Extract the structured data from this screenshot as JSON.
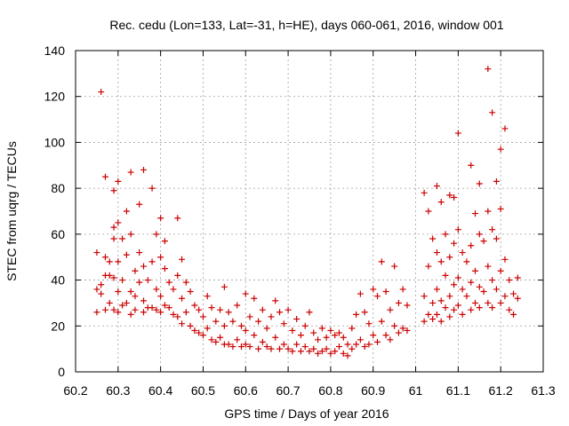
{
  "chart_data": {
    "type": "scatter",
    "title": "Rec. cedu (Lon=133, Lat=-31, h=HE), days 060-061, 2016, window 001",
    "xlabel": "GPS time / Days of year 2016",
    "ylabel": "STEC from uqrg / TECUs",
    "xlim": [
      60.2,
      61.3
    ],
    "ylim": [
      0,
      140
    ],
    "x_ticks": [
      "60.2",
      "60.3",
      "60.4",
      "60.5",
      "60.6",
      "60.7",
      "60.8",
      "60.9",
      "61",
      "61.1",
      "61.2",
      "61.3"
    ],
    "y_ticks": [
      "0",
      "20",
      "40",
      "60",
      "80",
      "100",
      "120",
      "140"
    ],
    "grid": true,
    "marker": "plus",
    "color": "#cc0000",
    "series": [
      {
        "points": [
          [
            60.25,
            52
          ],
          [
            60.25,
            36
          ],
          [
            60.25,
            26
          ],
          [
            60.26,
            122
          ],
          [
            60.26,
            38
          ],
          [
            60.26,
            34
          ],
          [
            60.27,
            85
          ],
          [
            60.27,
            50
          ],
          [
            60.27,
            42
          ],
          [
            60.27,
            27
          ],
          [
            60.28,
            48
          ],
          [
            60.28,
            42
          ],
          [
            60.28,
            30
          ],
          [
            60.29,
            79
          ],
          [
            60.29,
            63
          ],
          [
            60.29,
            58
          ],
          [
            60.29,
            41
          ],
          [
            60.29,
            27
          ],
          [
            60.3,
            83
          ],
          [
            60.3,
            65
          ],
          [
            60.3,
            48
          ],
          [
            60.3,
            35
          ],
          [
            60.3,
            26
          ],
          [
            60.31,
            58
          ],
          [
            60.31,
            40
          ],
          [
            60.31,
            29
          ],
          [
            60.32,
            70
          ],
          [
            60.32,
            51
          ],
          [
            60.32,
            30
          ],
          [
            60.33,
            87
          ],
          [
            60.33,
            60
          ],
          [
            60.33,
            35
          ],
          [
            60.33,
            25
          ],
          [
            60.34,
            44
          ],
          [
            60.34,
            33
          ],
          [
            60.34,
            27
          ],
          [
            60.35,
            73
          ],
          [
            60.35,
            52
          ],
          [
            60.35,
            39
          ],
          [
            60.36,
            88
          ],
          [
            60.36,
            46
          ],
          [
            60.36,
            31
          ],
          [
            60.36,
            26
          ],
          [
            60.37,
            40
          ],
          [
            60.37,
            28
          ],
          [
            60.38,
            80
          ],
          [
            60.38,
            48
          ],
          [
            60.38,
            28
          ],
          [
            60.39,
            60
          ],
          [
            60.39,
            36
          ],
          [
            60.39,
            27
          ],
          [
            60.4,
            67
          ],
          [
            60.4,
            50
          ],
          [
            60.4,
            33
          ],
          [
            60.4,
            26
          ],
          [
            60.41,
            57
          ],
          [
            60.41,
            45
          ],
          [
            60.41,
            29
          ],
          [
            60.42,
            39
          ],
          [
            60.42,
            28
          ],
          [
            60.43,
            36
          ],
          [
            60.43,
            25
          ],
          [
            60.44,
            67
          ],
          [
            60.44,
            42
          ],
          [
            60.44,
            24
          ],
          [
            60.45,
            49
          ],
          [
            60.45,
            32
          ],
          [
            60.45,
            21
          ],
          [
            60.46,
            39
          ],
          [
            60.46,
            26
          ],
          [
            60.47,
            35
          ],
          [
            60.47,
            20
          ],
          [
            60.48,
            29
          ],
          [
            60.48,
            18
          ],
          [
            60.49,
            27
          ],
          [
            60.49,
            17
          ],
          [
            60.5,
            24
          ],
          [
            60.5,
            16
          ],
          [
            60.51,
            33
          ],
          [
            60.51,
            19
          ],
          [
            60.52,
            28
          ],
          [
            60.52,
            14
          ],
          [
            60.53,
            22
          ],
          [
            60.53,
            13
          ],
          [
            60.54,
            27
          ],
          [
            60.54,
            15
          ],
          [
            60.55,
            37
          ],
          [
            60.55,
            20
          ],
          [
            60.55,
            12
          ],
          [
            60.56,
            26
          ],
          [
            60.56,
            12
          ],
          [
            60.57,
            22
          ],
          [
            60.57,
            11
          ],
          [
            60.58,
            29
          ],
          [
            60.58,
            14
          ],
          [
            60.59,
            20
          ],
          [
            60.59,
            11
          ],
          [
            60.6,
            34
          ],
          [
            60.6,
            18
          ],
          [
            60.6,
            12
          ],
          [
            60.61,
            24
          ],
          [
            60.61,
            11
          ],
          [
            60.62,
            32
          ],
          [
            60.62,
            16
          ],
          [
            60.63,
            22
          ],
          [
            60.63,
            10
          ],
          [
            60.64,
            27
          ],
          [
            60.64,
            13
          ],
          [
            60.65,
            19
          ],
          [
            60.65,
            11
          ],
          [
            60.66,
            24
          ],
          [
            60.66,
            10
          ],
          [
            60.67,
            31
          ],
          [
            60.67,
            15
          ],
          [
            60.68,
            26
          ],
          [
            60.68,
            10
          ],
          [
            60.69,
            21
          ],
          [
            60.69,
            12
          ],
          [
            60.7,
            27
          ],
          [
            60.7,
            10
          ],
          [
            60.71,
            18
          ],
          [
            60.71,
            9
          ],
          [
            60.72,
            23
          ],
          [
            60.72,
            12
          ],
          [
            60.73,
            16
          ],
          [
            60.73,
            9
          ],
          [
            60.74,
            20
          ],
          [
            60.74,
            11
          ],
          [
            60.75,
            26
          ],
          [
            60.75,
            9
          ],
          [
            60.76,
            17
          ],
          [
            60.76,
            10
          ],
          [
            60.77,
            14
          ],
          [
            60.77,
            8
          ],
          [
            60.78,
            19
          ],
          [
            60.78,
            9
          ],
          [
            60.79,
            15
          ],
          [
            60.79,
            10
          ],
          [
            60.8,
            18
          ],
          [
            60.8,
            8
          ],
          [
            60.81,
            16
          ],
          [
            60.81,
            9
          ],
          [
            60.82,
            17
          ],
          [
            60.82,
            11
          ],
          [
            60.83,
            15
          ],
          [
            60.83,
            8
          ],
          [
            60.84,
            12
          ],
          [
            60.84,
            7
          ],
          [
            60.85,
            19
          ],
          [
            60.85,
            10
          ],
          [
            60.86,
            25
          ],
          [
            60.86,
            12
          ],
          [
            60.87,
            34
          ],
          [
            60.87,
            14
          ],
          [
            60.88,
            26
          ],
          [
            60.88,
            11
          ],
          [
            60.89,
            21
          ],
          [
            60.89,
            12
          ],
          [
            60.9,
            36
          ],
          [
            60.9,
            16
          ],
          [
            60.91,
            33
          ],
          [
            60.91,
            13
          ],
          [
            60.92,
            48
          ],
          [
            60.92,
            22
          ],
          [
            60.93,
            35
          ],
          [
            60.93,
            16
          ],
          [
            60.94,
            27
          ],
          [
            60.94,
            14
          ],
          [
            60.95,
            46
          ],
          [
            60.95,
            20
          ],
          [
            60.96,
            30
          ],
          [
            60.96,
            17
          ],
          [
            60.97,
            36
          ],
          [
            60.97,
            19
          ],
          [
            60.98,
            29
          ],
          [
            60.98,
            18
          ],
          [
            61.02,
            78
          ],
          [
            61.02,
            33
          ],
          [
            61.02,
            22
          ],
          [
            61.03,
            70
          ],
          [
            61.03,
            46
          ],
          [
            61.03,
            25
          ],
          [
            61.04,
            58
          ],
          [
            61.04,
            30
          ],
          [
            61.04,
            23
          ],
          [
            61.05,
            81
          ],
          [
            61.05,
            52
          ],
          [
            61.05,
            36
          ],
          [
            61.05,
            25
          ],
          [
            61.06,
            74
          ],
          [
            61.06,
            48
          ],
          [
            61.06,
            31
          ],
          [
            61.06,
            22
          ],
          [
            61.07,
            60
          ],
          [
            61.07,
            42
          ],
          [
            61.07,
            28
          ],
          [
            61.08,
            77
          ],
          [
            61.08,
            50
          ],
          [
            61.08,
            33
          ],
          [
            61.08,
            24
          ],
          [
            61.09,
            76
          ],
          [
            61.09,
            56
          ],
          [
            61.09,
            38
          ],
          [
            61.09,
            27
          ],
          [
            61.1,
            104
          ],
          [
            61.1,
            62
          ],
          [
            61.1,
            41
          ],
          [
            61.1,
            29
          ],
          [
            61.11,
            52
          ],
          [
            61.11,
            36
          ],
          [
            61.11,
            25
          ],
          [
            61.12,
            48
          ],
          [
            61.12,
            33
          ],
          [
            61.13,
            90
          ],
          [
            61.13,
            55
          ],
          [
            61.13,
            39
          ],
          [
            61.13,
            27
          ],
          [
            61.14,
            69
          ],
          [
            61.14,
            44
          ],
          [
            61.14,
            30
          ],
          [
            61.15,
            82
          ],
          [
            61.15,
            60
          ],
          [
            61.15,
            37
          ],
          [
            61.15,
            28
          ],
          [
            61.16,
            57
          ],
          [
            61.16,
            35
          ],
          [
            61.17,
            132
          ],
          [
            61.17,
            70
          ],
          [
            61.17,
            46
          ],
          [
            61.17,
            30
          ],
          [
            61.18,
            113
          ],
          [
            61.18,
            62
          ],
          [
            61.18,
            40
          ],
          [
            61.18,
            28
          ],
          [
            61.19,
            83
          ],
          [
            61.19,
            58
          ],
          [
            61.19,
            36
          ],
          [
            61.2,
            97
          ],
          [
            61.2,
            71
          ],
          [
            61.2,
            44
          ],
          [
            61.2,
            30
          ],
          [
            61.21,
            106
          ],
          [
            61.21,
            49
          ],
          [
            61.21,
            33
          ],
          [
            61.22,
            40
          ],
          [
            61.22,
            27
          ],
          [
            61.23,
            34
          ],
          [
            61.23,
            25
          ],
          [
            61.24,
            41
          ],
          [
            61.24,
            32
          ]
        ]
      }
    ]
  }
}
